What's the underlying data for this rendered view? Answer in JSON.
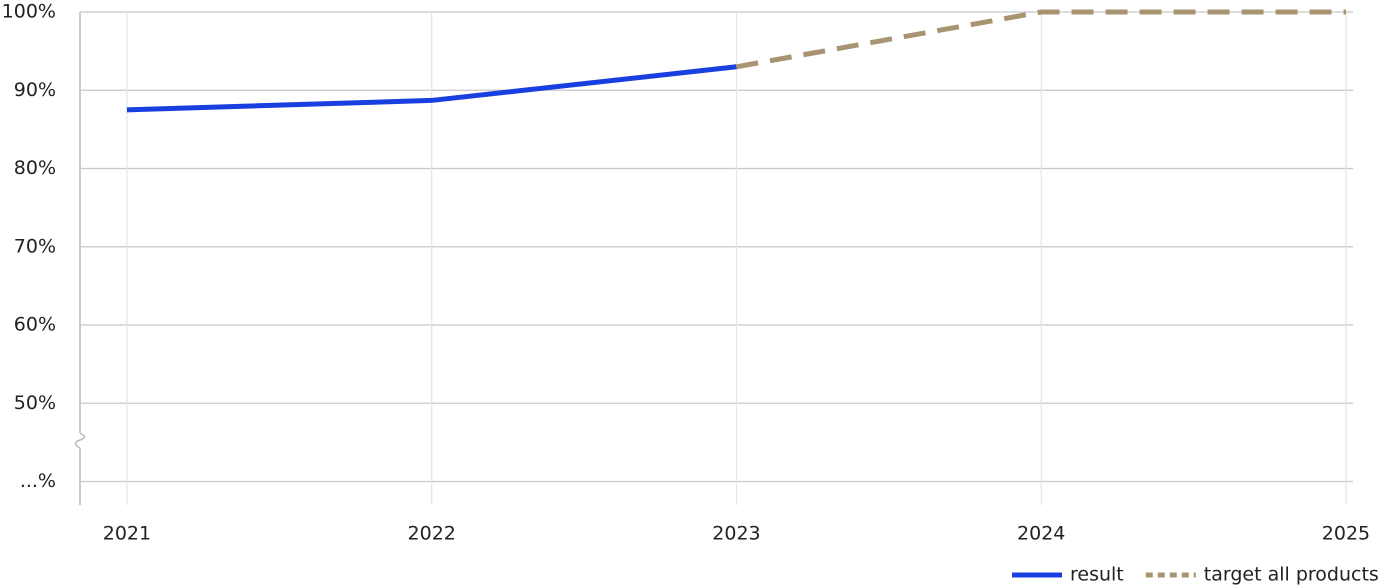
{
  "chart_data": {
    "type": "line",
    "x": [
      2021,
      2022,
      2023,
      2024,
      2025
    ],
    "xlim": [
      2020.846,
      2025.023
    ],
    "xticks": [
      2021,
      2022,
      2023,
      2024,
      2025
    ],
    "ylim": [
      37,
      100
    ],
    "yticks": [
      {
        "value": 40,
        "label": "...%"
      },
      {
        "value": 50,
        "label": "50%"
      },
      {
        "value": 60,
        "label": "60%"
      },
      {
        "value": 70,
        "label": "70%"
      },
      {
        "value": 80,
        "label": "80%"
      },
      {
        "value": 90,
        "label": "90%"
      },
      {
        "value": 100,
        "label": "100%"
      }
    ],
    "grid": true,
    "legend": "bottom-right",
    "series": [
      {
        "name": "result",
        "color": "#1a3fe0",
        "dashed": false,
        "values": [
          87.5,
          88.7,
          93,
          null,
          null
        ]
      },
      {
        "name": "target all products",
        "color": "#a89470",
        "dashed": true,
        "values": [
          null,
          null,
          93,
          100,
          100
        ]
      }
    ]
  }
}
